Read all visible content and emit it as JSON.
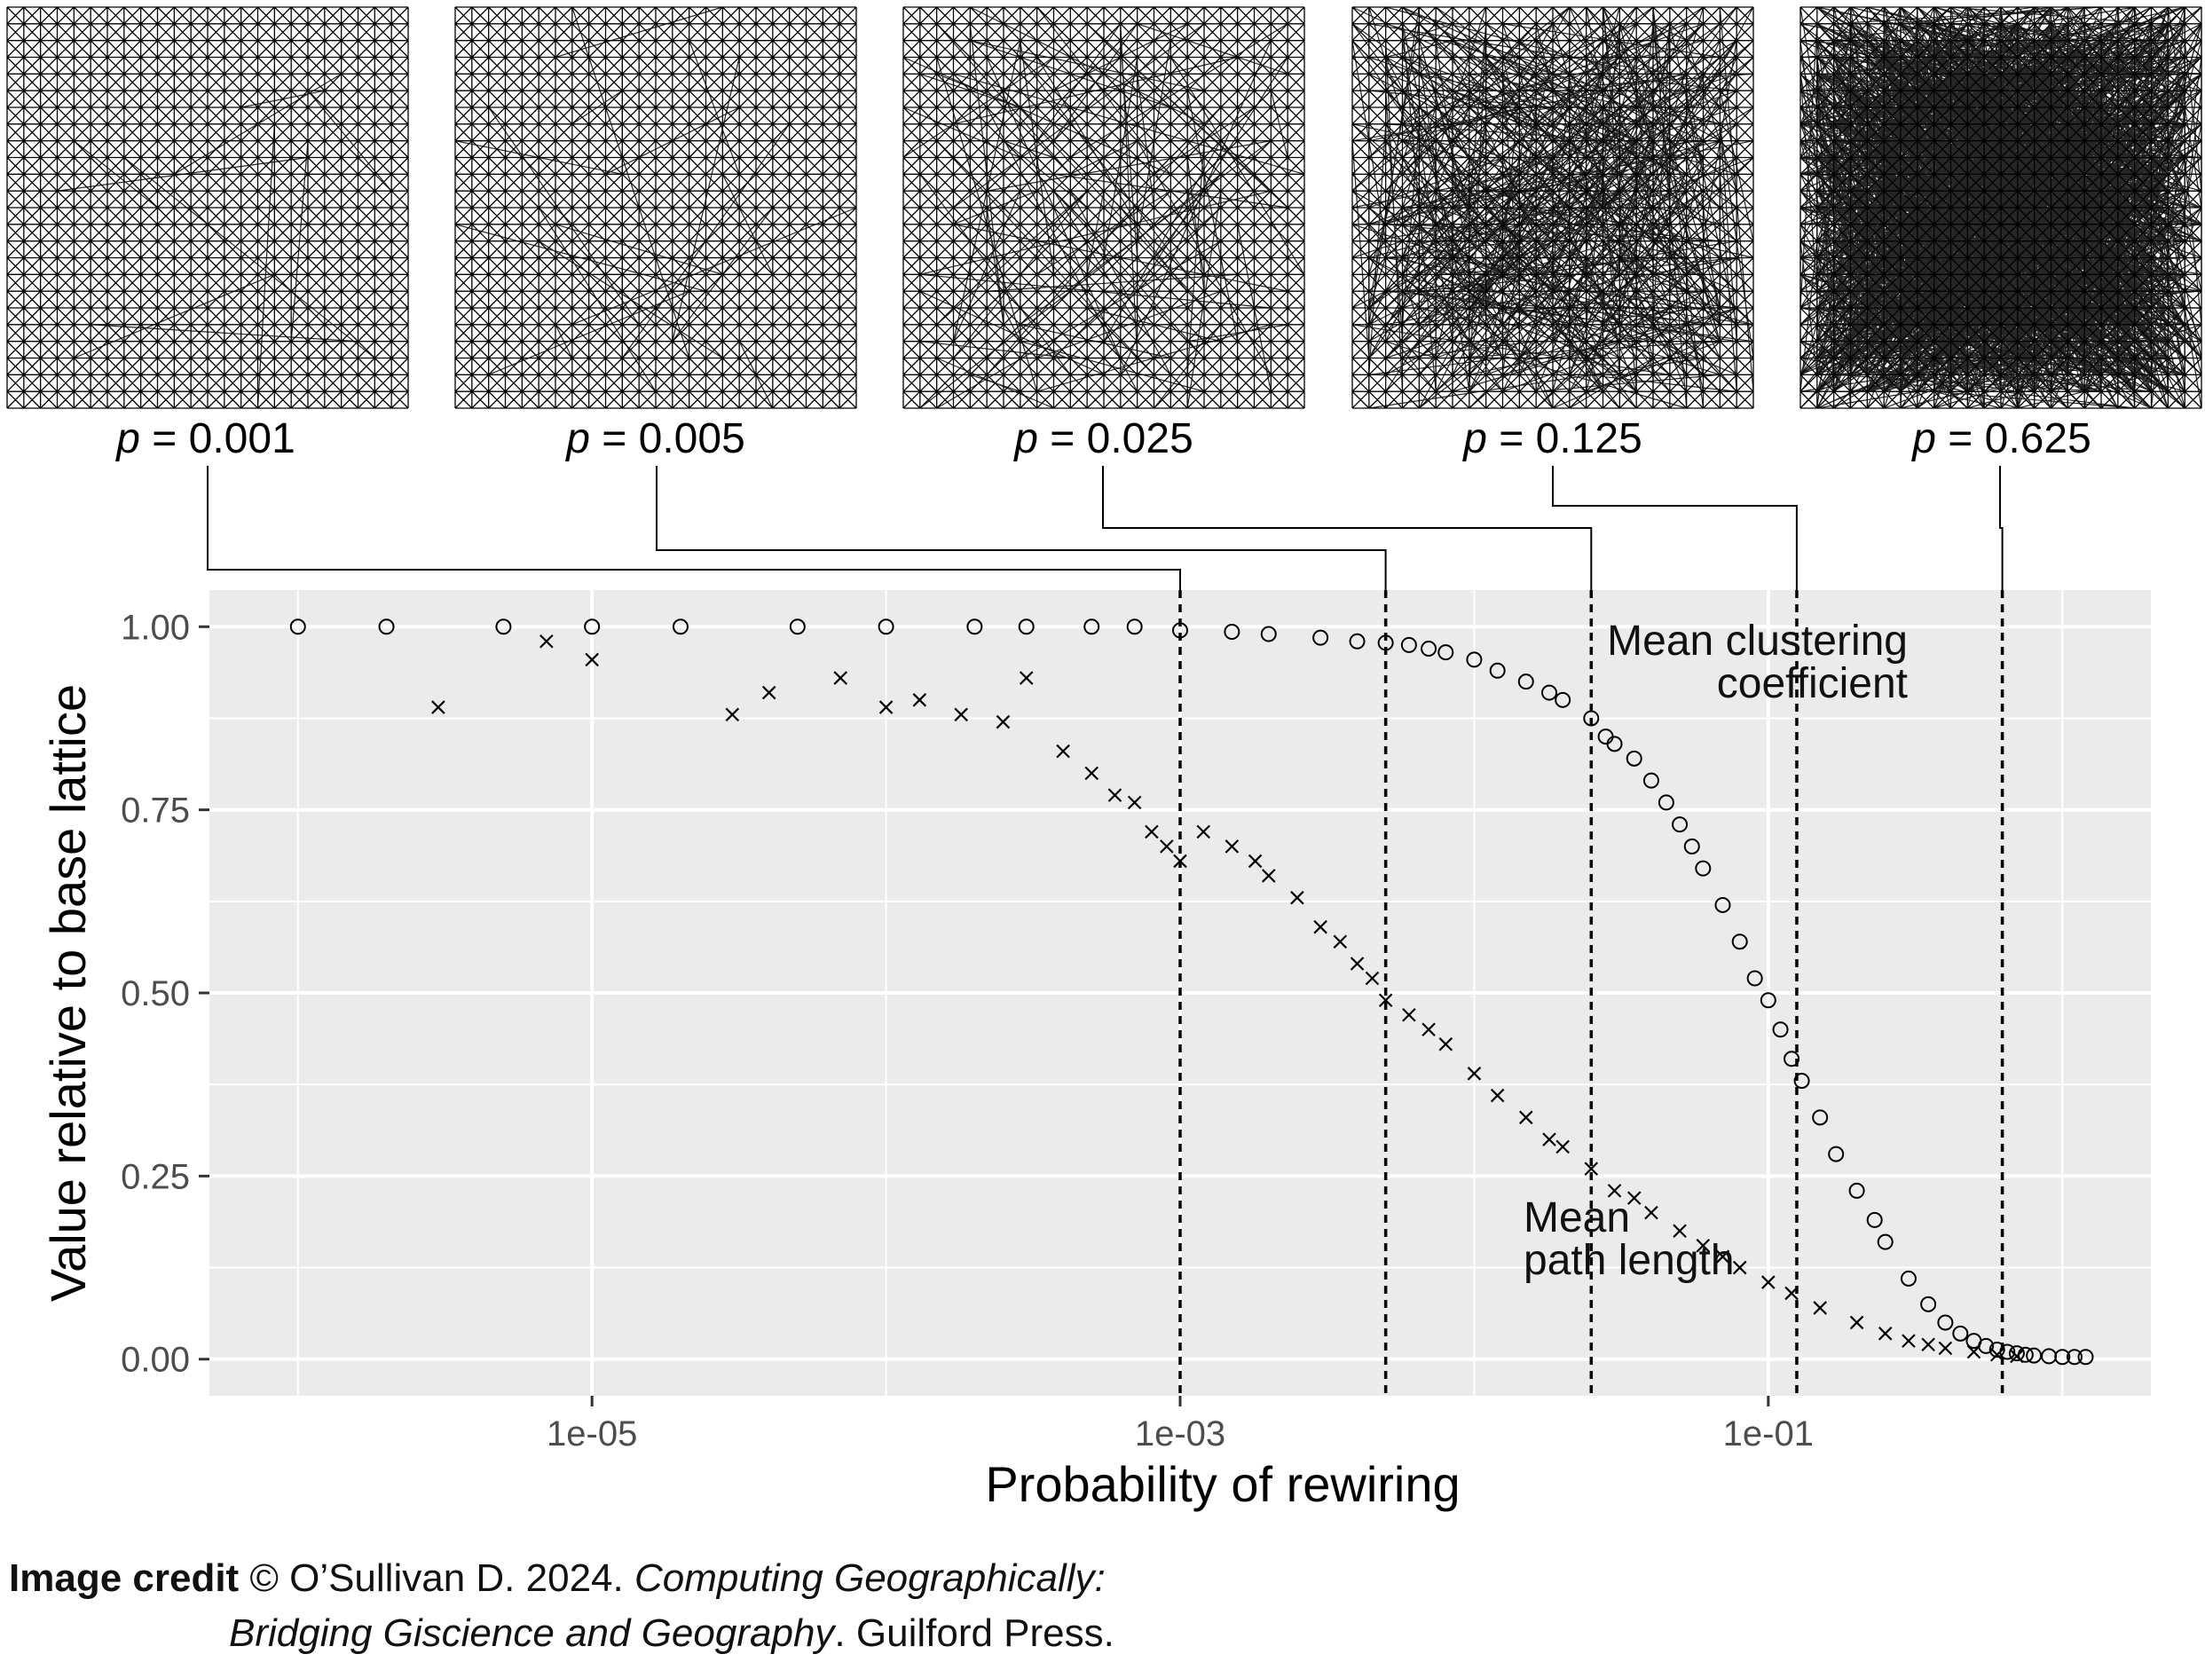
{
  "networks": [
    {
      "p_prefix": "p",
      "p_value": " = 0.001",
      "p": 0.001
    },
    {
      "p_prefix": "p",
      "p_value": " = 0.005",
      "p": 0.005
    },
    {
      "p_prefix": "p",
      "p_value": " = 0.025",
      "p": 0.025
    },
    {
      "p_prefix": "p",
      "p_value": " = 0.125",
      "p": 0.125
    },
    {
      "p_prefix": "p",
      "p_value": " = 0.625",
      "p": 0.625
    }
  ],
  "chart_data": {
    "type": "scatter",
    "xlabel": "Probability of rewiring",
    "ylabel": "Value relative to base lattice",
    "x_scale": "log10",
    "xlim": [
      5e-07,
      2.0
    ],
    "ylim": [
      -0.05,
      1.05
    ],
    "x_ticks": [
      1e-05,
      0.001,
      0.1
    ],
    "x_tick_labels": [
      "1e-05",
      "1e-03",
      "1e-01"
    ],
    "y_ticks": [
      0.0,
      0.25,
      0.5,
      0.75,
      1.0
    ],
    "y_tick_labels": [
      "0.00",
      "0.25",
      "0.50",
      "0.75",
      "1.00"
    ],
    "grid": true,
    "background": "#ebebeb",
    "vlines": [
      0.001,
      0.005,
      0.025,
      0.125,
      0.625
    ],
    "annotations": [
      {
        "lines": [
          "Mean clustering",
          "coefficient"
        ]
      },
      {
        "lines": [
          "Mean",
          "path length"
        ]
      }
    ],
    "series": [
      {
        "marker": "circle",
        "x": [
          1e-06,
          2e-06,
          5e-06,
          1e-05,
          2e-05,
          5e-05,
          0.0001,
          0.0002,
          0.0003,
          0.0005,
          0.0007,
          0.001,
          0.0015,
          0.002,
          0.003,
          0.004,
          0.005,
          0.006,
          0.007,
          0.008,
          0.01,
          0.012,
          0.015,
          0.018,
          0.02,
          0.025,
          0.028,
          0.03,
          0.035,
          0.04,
          0.045,
          0.05,
          0.055,
          0.06,
          0.07,
          0.08,
          0.09,
          0.1,
          0.11,
          0.12,
          0.13,
          0.15,
          0.17,
          0.2,
          0.23,
          0.25,
          0.3,
          0.35,
          0.4,
          0.45,
          0.5,
          0.55,
          0.6,
          0.65,
          0.7,
          0.75,
          0.8,
          0.9,
          1.0,
          1.1,
          1.2
        ],
        "y": [
          1.0,
          1.0,
          1.0,
          1.0,
          1.0,
          1.0,
          1.0,
          1.0,
          1.0,
          1.0,
          1.0,
          0.995,
          0.993,
          0.99,
          0.985,
          0.98,
          0.978,
          0.975,
          0.97,
          0.965,
          0.955,
          0.94,
          0.925,
          0.91,
          0.9,
          0.875,
          0.85,
          0.84,
          0.82,
          0.79,
          0.76,
          0.73,
          0.7,
          0.67,
          0.62,
          0.57,
          0.52,
          0.49,
          0.45,
          0.41,
          0.38,
          0.33,
          0.28,
          0.23,
          0.19,
          0.16,
          0.11,
          0.075,
          0.05,
          0.035,
          0.025,
          0.018,
          0.013,
          0.01,
          0.008,
          0.006,
          0.005,
          0.004,
          0.003,
          0.003,
          0.003
        ]
      },
      {
        "marker": "cross",
        "x": [
          3e-06,
          7e-06,
          1e-05,
          3e-05,
          4e-05,
          7e-05,
          0.0001,
          0.00013,
          0.00018,
          0.00025,
          0.0003,
          0.0004,
          0.0005,
          0.0006,
          0.0007,
          0.0008,
          0.0009,
          0.001,
          0.0012,
          0.0015,
          0.0018,
          0.002,
          0.0025,
          0.003,
          0.0035,
          0.004,
          0.0045,
          0.005,
          0.006,
          0.007,
          0.008,
          0.01,
          0.012,
          0.015,
          0.018,
          0.02,
          0.025,
          0.03,
          0.035,
          0.04,
          0.05,
          0.06,
          0.07,
          0.08,
          0.1,
          0.12,
          0.15,
          0.2,
          0.25,
          0.3,
          0.35,
          0.4,
          0.5,
          0.6,
          0.7
        ],
        "y": [
          0.89,
          0.98,
          0.955,
          0.88,
          0.91,
          0.93,
          0.89,
          0.9,
          0.88,
          0.87,
          0.93,
          0.83,
          0.8,
          0.77,
          0.76,
          0.72,
          0.7,
          0.68,
          0.72,
          0.7,
          0.68,
          0.66,
          0.63,
          0.59,
          0.57,
          0.54,
          0.52,
          0.49,
          0.47,
          0.45,
          0.43,
          0.39,
          0.36,
          0.33,
          0.3,
          0.29,
          0.26,
          0.23,
          0.22,
          0.2,
          0.175,
          0.155,
          0.14,
          0.125,
          0.105,
          0.09,
          0.07,
          0.05,
          0.035,
          0.025,
          0.02,
          0.015,
          0.01,
          0.006,
          0.004
        ]
      }
    ]
  },
  "credit": {
    "label": "Image credit",
    "copyright": " © O’Sullivan D. 2024. ",
    "title_line1": "Computing Geographically:",
    "title_line2": "Bridging Giscience and Geography",
    "publisher": ". Guilford Press."
  }
}
